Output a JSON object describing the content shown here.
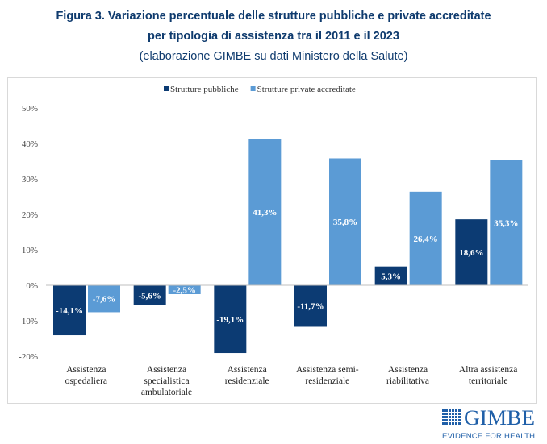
{
  "title_line1": "Figura 3. Variazione percentuale delle strutture pubbliche e private accreditate",
  "title_line2": "per tipologia di assistenza tra il 2011 e il 2023",
  "subtitle": "(elaborazione GIMBE su dati Ministero della Salute)",
  "logo": {
    "name": "GIMBE",
    "tagline": "EVIDENCE FOR HEALTH"
  },
  "chart_data": {
    "type": "bar",
    "categories": [
      [
        "Assistenza",
        "ospedaliera"
      ],
      [
        "Assistenza",
        "specialistica",
        "ambulatoriale"
      ],
      [
        "Assistenza",
        "residenziale"
      ],
      [
        "Assistenza semi-",
        "residenziale"
      ],
      [
        "Assistenza",
        "riabilitativa"
      ],
      [
        "Altra assistenza",
        "territoriale"
      ]
    ],
    "series": [
      {
        "name": "Strutture pubbliche",
        "color": "#0c3b73",
        "values": [
          -14.1,
          -5.6,
          -19.1,
          -11.7,
          5.3,
          18.6
        ],
        "labels": [
          "-14,1%",
          "-5,6%",
          "-19,1%",
          "-11,7%",
          "5,3%",
          "18,6%"
        ]
      },
      {
        "name": "Strutture private accreditate",
        "color": "#5b9bd5",
        "values": [
          -7.6,
          -2.5,
          41.3,
          35.8,
          26.4,
          35.3
        ],
        "labels": [
          "-7,6%",
          "-2,5%",
          "41,3%",
          "35,8%",
          "26,4%",
          "35,3%"
        ]
      }
    ],
    "ylim": [
      -20,
      50
    ],
    "yticks": [
      -20,
      -10,
      0,
      10,
      20,
      30,
      40,
      50
    ],
    "ytick_labels": [
      "-20%",
      "-10%",
      "0%",
      "10%",
      "20%",
      "30%",
      "40%",
      "50%"
    ],
    "grid": false,
    "legend": "top"
  }
}
